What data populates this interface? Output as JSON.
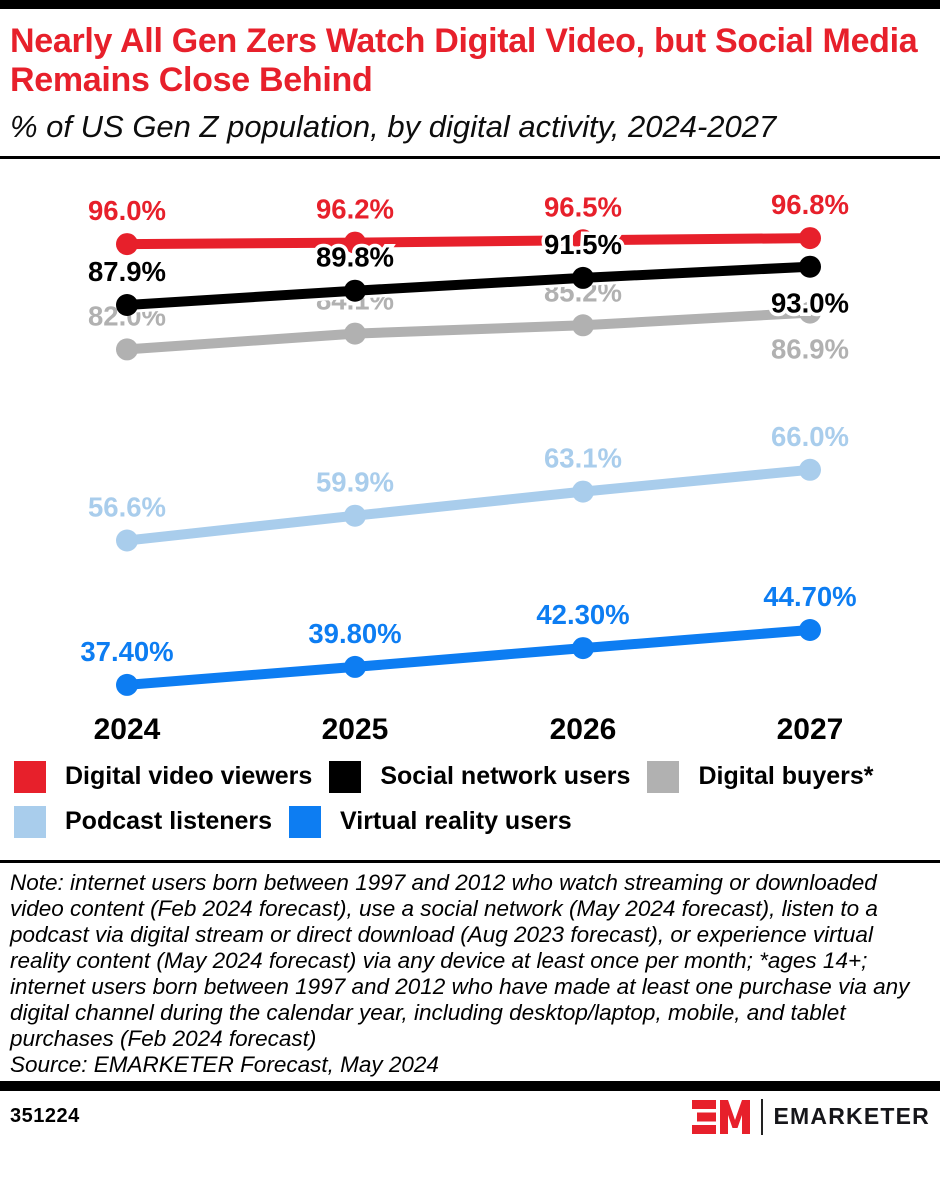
{
  "header": {
    "title": "Nearly All Gen Zers Watch Digital Video, but Social Media Remains Close Behind",
    "subtitle": "% of US Gen Z population, by digital activity, 2024-2027"
  },
  "chart_data": {
    "type": "line",
    "title": "Nearly All Gen Zers Watch Digital Video, but Social Media Remains Close Behind",
    "subtitle": "% of US Gen Z population, by digital activity, 2024-2027",
    "x_categories": [
      "2024",
      "2025",
      "2026",
      "2027"
    ],
    "ylim": [
      35,
      100
    ],
    "grid": false,
    "legend_position": "bottom",
    "series": [
      {
        "name": "Digital video viewers",
        "color": "#e7202b",
        "values": [
          96.0,
          96.2,
          96.5,
          96.8
        ],
        "labels": [
          "96.0%",
          "96.2%",
          "96.5%",
          "96.8%"
        ],
        "label_side": [
          "above",
          "above",
          "above",
          "above"
        ]
      },
      {
        "name": "Social network users",
        "color": "#000000",
        "values": [
          87.9,
          89.8,
          91.5,
          93.0
        ],
        "labels": [
          "87.9%",
          "89.8%",
          "91.5%",
          "93.0%"
        ],
        "label_side": [
          "above",
          "above",
          "above",
          "below"
        ]
      },
      {
        "name": "Digital buyers*",
        "color": "#b1b1b1",
        "values": [
          82.0,
          84.1,
          85.2,
          86.9
        ],
        "labels": [
          "82.0%",
          "84.1%",
          "85.2%",
          "86.9%"
        ],
        "label_side": [
          "above",
          "above",
          "above",
          "below"
        ]
      },
      {
        "name": "Podcast listeners",
        "color": "#a9cdec",
        "values": [
          56.6,
          59.9,
          63.1,
          66.0
        ],
        "labels": [
          "56.6%",
          "59.9%",
          "63.1%",
          "66.0%"
        ],
        "label_side": [
          "above",
          "above",
          "above",
          "above"
        ]
      },
      {
        "name": "Virtual reality users",
        "color": "#0d7df2",
        "values": [
          37.4,
          39.8,
          42.3,
          44.7
        ],
        "labels": [
          "37.40%",
          "39.80%",
          "42.30%",
          "44.70%"
        ],
        "label_side": [
          "above",
          "above",
          "above",
          "above"
        ]
      }
    ],
    "legend_rows": [
      [
        0,
        1,
        2
      ],
      [
        3,
        4
      ]
    ]
  },
  "note": {
    "text": "Note: internet users born between 1997 and 2012 who watch streaming or downloaded video content (Feb 2024 forecast), use a social network (May 2024 forecast), listen to a podcast via digital stream or direct download (Aug 2023 forecast), or experience virtual reality content (May 2024 forecast) via any device at least once per month; *ages 14+; internet users born between 1997 and 2012 who have made at least one purchase via any digital channel during the calendar year, including desktop/laptop, mobile, and tablet purchases (Feb 2024 forecast)",
    "source": "Source: EMARKETER Forecast, May 2024"
  },
  "footer": {
    "chart_id": "351224",
    "brand": "EMARKETER"
  }
}
